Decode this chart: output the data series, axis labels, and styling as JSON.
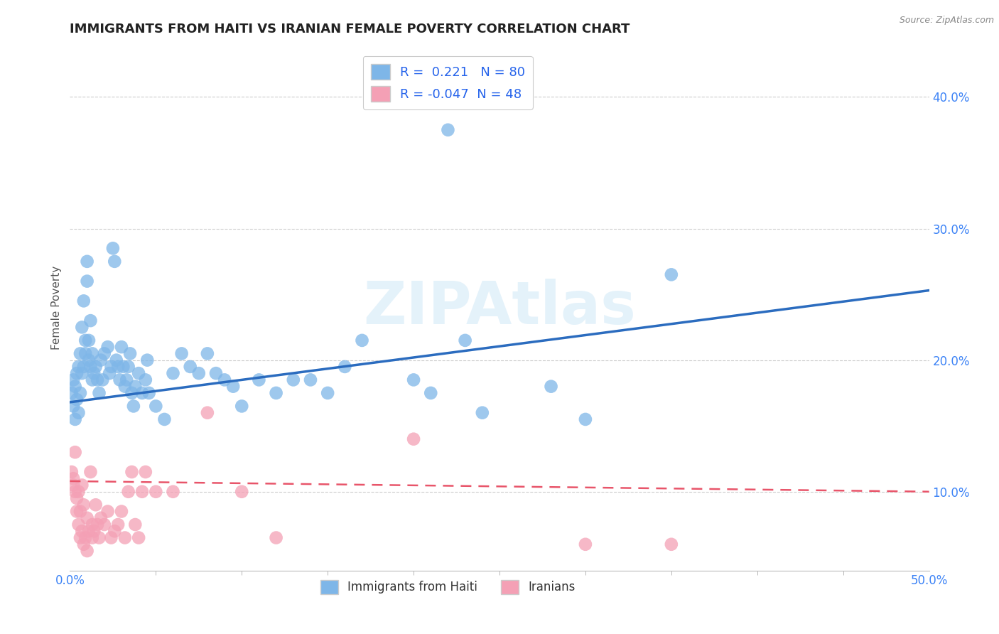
{
  "title": "IMMIGRANTS FROM HAITI VS IRANIAN FEMALE POVERTY CORRELATION CHART",
  "source": "Source: ZipAtlas.com",
  "ylabel": "Female Poverty",
  "xlim": [
    0.0,
    0.5
  ],
  "ylim": [
    0.04,
    0.44
  ],
  "yticks": [
    0.1,
    0.2,
    0.3,
    0.4
  ],
  "ytick_labels": [
    "10.0%",
    "20.0%",
    "30.0%",
    "40.0%"
  ],
  "xtick_left_label": "0.0%",
  "xtick_right_label": "50.0%",
  "haiti_color": "#7EB6E8",
  "iran_color": "#F4A0B5",
  "haiti_R": 0.221,
  "haiti_N": 80,
  "iran_R": -0.047,
  "iran_N": 48,
  "watermark": "ZIPAtlas",
  "legend_haiti": "Immigrants from Haiti",
  "legend_iran": "Iranians",
  "haiti_scatter": [
    [
      0.001,
      0.175
    ],
    [
      0.002,
      0.185
    ],
    [
      0.002,
      0.165
    ],
    [
      0.003,
      0.18
    ],
    [
      0.003,
      0.155
    ],
    [
      0.004,
      0.17
    ],
    [
      0.004,
      0.19
    ],
    [
      0.005,
      0.195
    ],
    [
      0.005,
      0.16
    ],
    [
      0.006,
      0.175
    ],
    [
      0.006,
      0.205
    ],
    [
      0.007,
      0.19
    ],
    [
      0.007,
      0.225
    ],
    [
      0.008,
      0.195
    ],
    [
      0.008,
      0.245
    ],
    [
      0.009,
      0.205
    ],
    [
      0.009,
      0.215
    ],
    [
      0.01,
      0.26
    ],
    [
      0.01,
      0.275
    ],
    [
      0.011,
      0.2
    ],
    [
      0.011,
      0.215
    ],
    [
      0.012,
      0.195
    ],
    [
      0.012,
      0.23
    ],
    [
      0.013,
      0.205
    ],
    [
      0.013,
      0.185
    ],
    [
      0.014,
      0.19
    ],
    [
      0.015,
      0.195
    ],
    [
      0.016,
      0.185
    ],
    [
      0.017,
      0.175
    ],
    [
      0.018,
      0.2
    ],
    [
      0.019,
      0.185
    ],
    [
      0.02,
      0.205
    ],
    [
      0.022,
      0.21
    ],
    [
      0.023,
      0.19
    ],
    [
      0.024,
      0.195
    ],
    [
      0.025,
      0.285
    ],
    [
      0.026,
      0.275
    ],
    [
      0.027,
      0.2
    ],
    [
      0.028,
      0.195
    ],
    [
      0.029,
      0.185
    ],
    [
      0.03,
      0.21
    ],
    [
      0.031,
      0.195
    ],
    [
      0.032,
      0.18
    ],
    [
      0.033,
      0.185
    ],
    [
      0.034,
      0.195
    ],
    [
      0.035,
      0.205
    ],
    [
      0.036,
      0.175
    ],
    [
      0.037,
      0.165
    ],
    [
      0.038,
      0.18
    ],
    [
      0.04,
      0.19
    ],
    [
      0.042,
      0.175
    ],
    [
      0.044,
      0.185
    ],
    [
      0.045,
      0.2
    ],
    [
      0.046,
      0.175
    ],
    [
      0.05,
      0.165
    ],
    [
      0.055,
      0.155
    ],
    [
      0.06,
      0.19
    ],
    [
      0.065,
      0.205
    ],
    [
      0.07,
      0.195
    ],
    [
      0.075,
      0.19
    ],
    [
      0.08,
      0.205
    ],
    [
      0.085,
      0.19
    ],
    [
      0.09,
      0.185
    ],
    [
      0.095,
      0.18
    ],
    [
      0.1,
      0.165
    ],
    [
      0.11,
      0.185
    ],
    [
      0.12,
      0.175
    ],
    [
      0.13,
      0.185
    ],
    [
      0.14,
      0.185
    ],
    [
      0.15,
      0.175
    ],
    [
      0.16,
      0.195
    ],
    [
      0.17,
      0.215
    ],
    [
      0.2,
      0.185
    ],
    [
      0.21,
      0.175
    ],
    [
      0.22,
      0.375
    ],
    [
      0.23,
      0.215
    ],
    [
      0.24,
      0.16
    ],
    [
      0.28,
      0.18
    ],
    [
      0.3,
      0.155
    ],
    [
      0.35,
      0.265
    ]
  ],
  "iran_scatter": [
    [
      0.001,
      0.115
    ],
    [
      0.002,
      0.105
    ],
    [
      0.002,
      0.11
    ],
    [
      0.003,
      0.13
    ],
    [
      0.003,
      0.1
    ],
    [
      0.004,
      0.095
    ],
    [
      0.004,
      0.085
    ],
    [
      0.005,
      0.1
    ],
    [
      0.005,
      0.075
    ],
    [
      0.006,
      0.085
    ],
    [
      0.006,
      0.065
    ],
    [
      0.007,
      0.07
    ],
    [
      0.007,
      0.105
    ],
    [
      0.008,
      0.09
    ],
    [
      0.008,
      0.06
    ],
    [
      0.009,
      0.065
    ],
    [
      0.01,
      0.08
    ],
    [
      0.01,
      0.055
    ],
    [
      0.011,
      0.07
    ],
    [
      0.012,
      0.115
    ],
    [
      0.013,
      0.075
    ],
    [
      0.013,
      0.065
    ],
    [
      0.014,
      0.07
    ],
    [
      0.015,
      0.09
    ],
    [
      0.016,
      0.075
    ],
    [
      0.017,
      0.065
    ],
    [
      0.018,
      0.08
    ],
    [
      0.02,
      0.075
    ],
    [
      0.022,
      0.085
    ],
    [
      0.024,
      0.065
    ],
    [
      0.026,
      0.07
    ],
    [
      0.028,
      0.075
    ],
    [
      0.03,
      0.085
    ],
    [
      0.032,
      0.065
    ],
    [
      0.034,
      0.1
    ],
    [
      0.036,
      0.115
    ],
    [
      0.038,
      0.075
    ],
    [
      0.04,
      0.065
    ],
    [
      0.042,
      0.1
    ],
    [
      0.044,
      0.115
    ],
    [
      0.05,
      0.1
    ],
    [
      0.06,
      0.1
    ],
    [
      0.08,
      0.16
    ],
    [
      0.1,
      0.1
    ],
    [
      0.12,
      0.065
    ],
    [
      0.2,
      0.14
    ],
    [
      0.3,
      0.06
    ],
    [
      0.35,
      0.06
    ]
  ],
  "haiti_line": [
    [
      0.0,
      0.168
    ],
    [
      0.5,
      0.253
    ]
  ],
  "iran_line": [
    [
      0.0,
      0.108
    ],
    [
      0.5,
      0.1
    ]
  ]
}
